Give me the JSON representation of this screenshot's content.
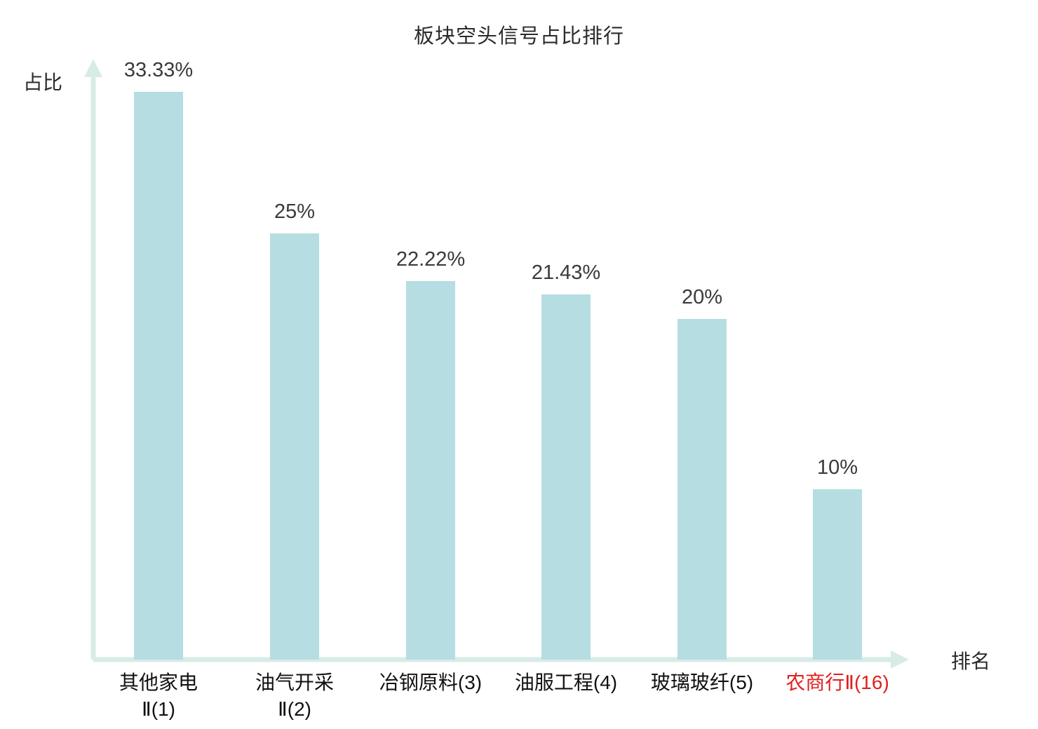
{
  "chart_data": {
    "type": "bar",
    "title": "板块空头信号占比排行",
    "xlabel": "排名",
    "ylabel": "占比",
    "categories": [
      "其他家电Ⅱ(1)",
      "油气开采Ⅱ(2)",
      "冶钢原料(3)",
      "油服工程(4)",
      "玻璃玻纤(5)",
      "农商行Ⅱ(16)"
    ],
    "category_lines": [
      [
        "其他家电",
        "Ⅱ(1)"
      ],
      [
        "油气开采",
        "Ⅱ(2)"
      ],
      [
        "冶钢原料(3)"
      ],
      [
        "油服工程(4)"
      ],
      [
        "玻璃玻纤(5)"
      ],
      [
        "农商行Ⅱ(16)"
      ]
    ],
    "values": [
      33.33,
      25,
      22.22,
      21.43,
      20,
      10
    ],
    "value_labels": [
      "33.33%",
      "25%",
      "22.22%",
      "21.43%",
      "20%",
      "10%"
    ],
    "highlight_index": 5,
    "highlight_color": "#e02020",
    "bar_color": "#b6dde2",
    "axis_color": "#d8ece7",
    "label_color": "#3a3a3a",
    "ylim": [
      0,
      34.6
    ],
    "grid": false,
    "legend": "none"
  }
}
